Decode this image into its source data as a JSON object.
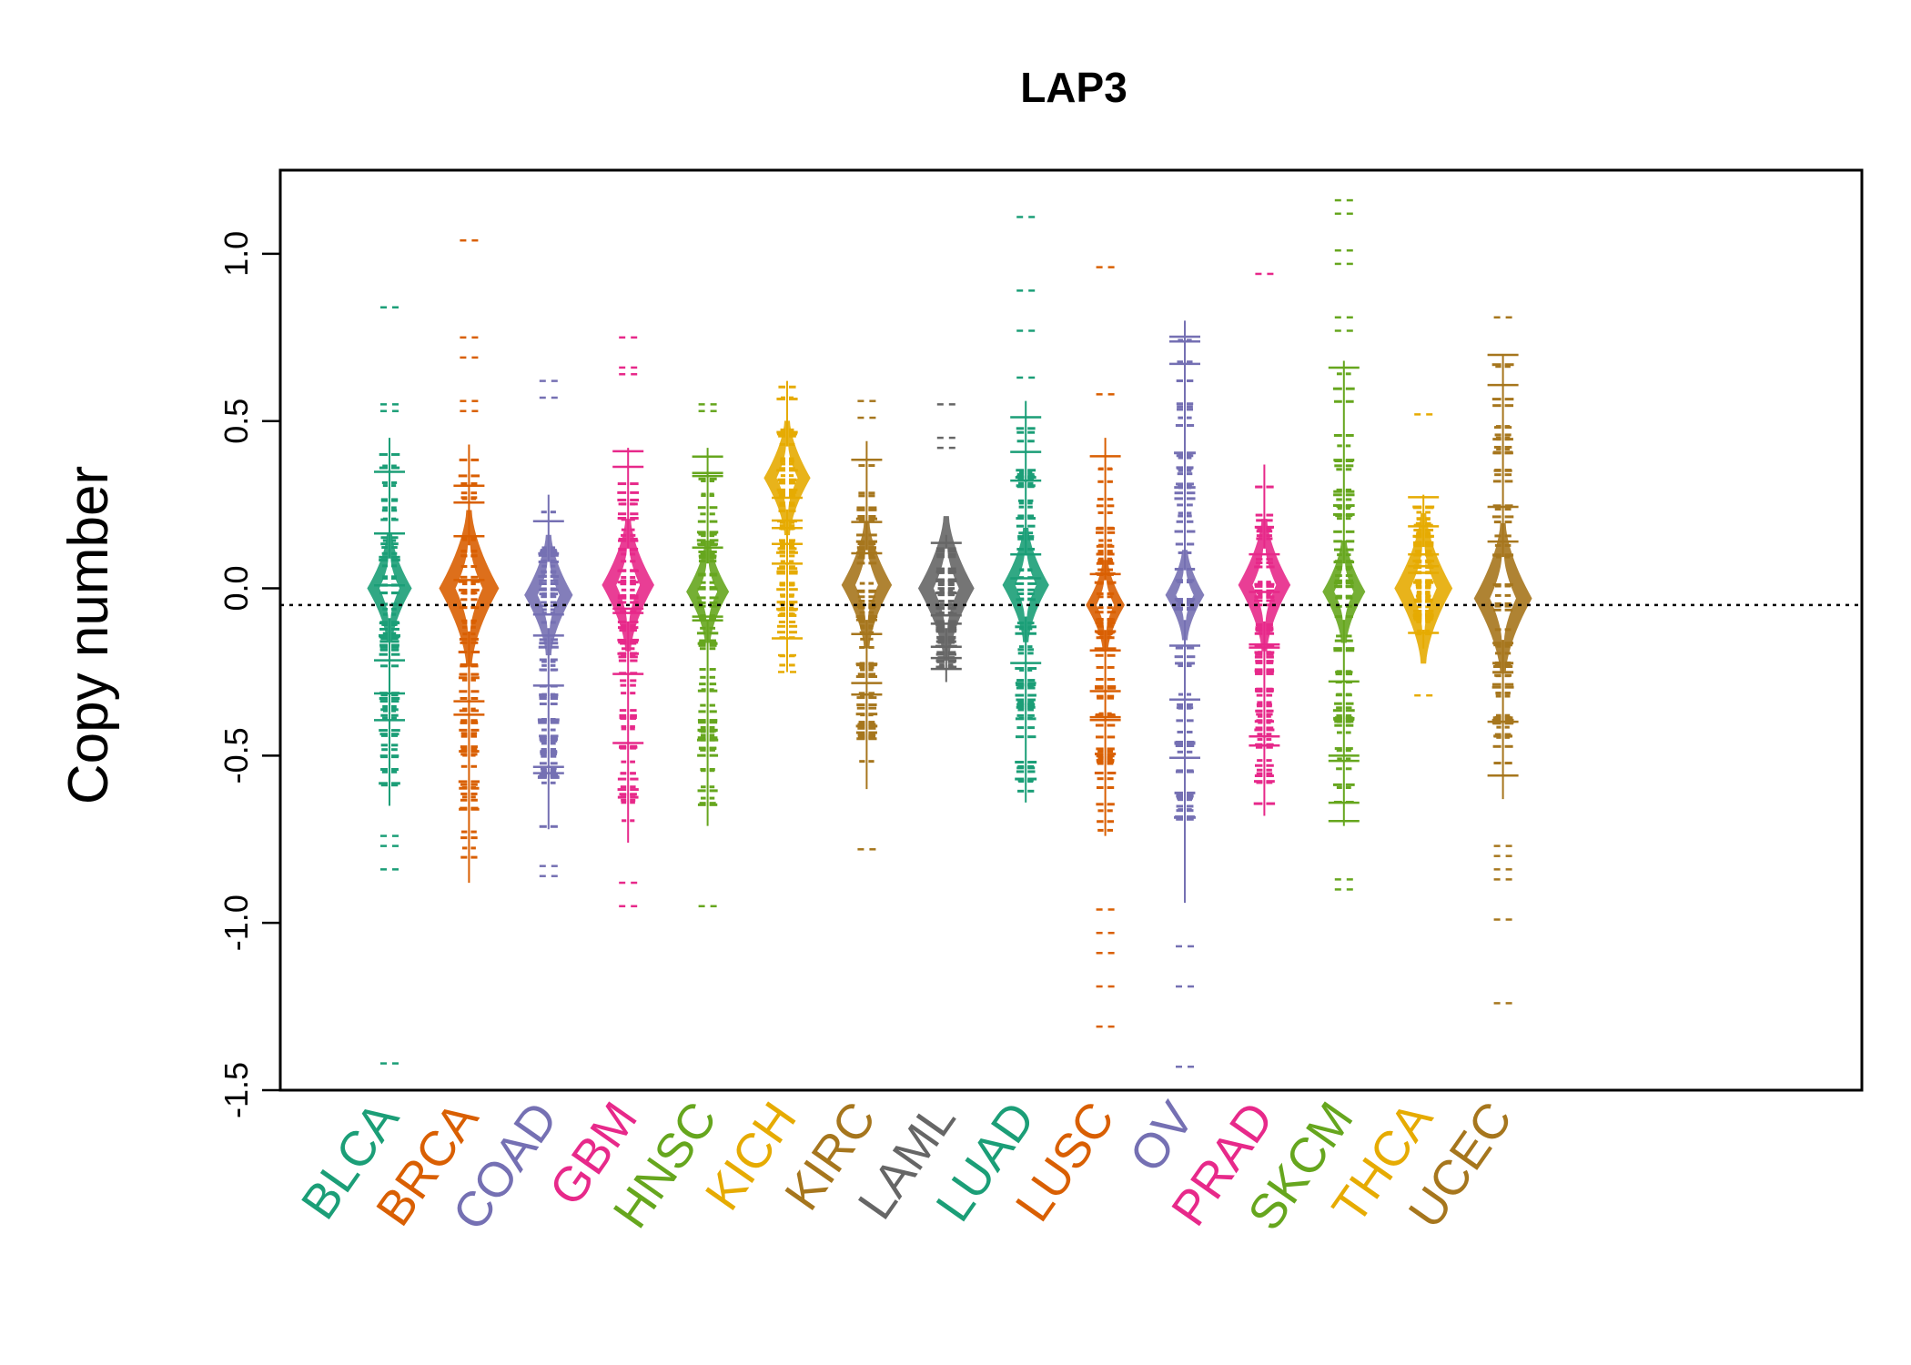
{
  "chart_data": {
    "type": "beanplot",
    "title": "LAP3",
    "xlabel": "",
    "ylabel": "Copy number",
    "ylim": [
      -1.5,
      1.25
    ],
    "yticks": [
      {
        "value": -1.5,
        "label": "-1.5"
      },
      {
        "value": -1.0,
        "label": "-1.0"
      },
      {
        "value": -0.5,
        "label": "-0.5"
      },
      {
        "value": 0.0,
        "label": "0.0"
      },
      {
        "value": 0.5,
        "label": "0.5"
      },
      {
        "value": 1.0,
        "label": "1.0"
      }
    ],
    "reference_line": -0.05,
    "categories": [
      {
        "name": "BLCA",
        "color": "#1B9E77",
        "min": -1.42,
        "max": 0.84,
        "q_low": -0.65,
        "q_high": 0.45,
        "center": 0.0,
        "width": 0.6,
        "outliers": [
          0.84,
          0.55,
          0.53,
          -0.74,
          -0.77,
          -0.84,
          -1.42
        ]
      },
      {
        "name": "BRCA",
        "color": "#D95F02",
        "min": -0.88,
        "max": 1.04,
        "q_low": -0.88,
        "q_high": 0.43,
        "center": 0.0,
        "width": 1.0,
        "outliers": [
          1.04,
          0.75,
          0.69,
          0.56,
          0.53
        ]
      },
      {
        "name": "COAD",
        "color": "#7570B3",
        "min": -0.86,
        "max": 0.62,
        "q_low": -0.72,
        "q_high": 0.28,
        "center": -0.02,
        "width": 0.7,
        "outliers": [
          0.62,
          0.57,
          -0.83,
          -0.86
        ]
      },
      {
        "name": "GBM",
        "color": "#E7298A",
        "min": -0.95,
        "max": 0.75,
        "q_low": -0.76,
        "q_high": 0.42,
        "center": 0.01,
        "width": 0.8,
        "outliers": [
          0.75,
          0.66,
          0.64,
          -0.88,
          -0.95
        ]
      },
      {
        "name": "HNSC",
        "color": "#66A61E",
        "min": -0.95,
        "max": 0.55,
        "q_low": -0.71,
        "q_high": 0.42,
        "center": -0.01,
        "width": 0.55,
        "outliers": [
          0.55,
          0.53,
          -0.95
        ]
      },
      {
        "name": "KICH",
        "color": "#E6AB02",
        "min": -0.29,
        "max": 0.62,
        "q_low": -0.25,
        "q_high": 0.62,
        "center": 0.33,
        "width": 0.65,
        "outliers": [
          -0.2,
          -0.25
        ]
      },
      {
        "name": "KIRC",
        "color": "#A6761D",
        "min": -0.78,
        "max": 0.56,
        "q_low": -0.6,
        "q_high": 0.44,
        "center": 0.01,
        "width": 0.75,
        "outliers": [
          0.56,
          0.51,
          -0.78
        ]
      },
      {
        "name": "LAML",
        "color": "#666666",
        "min": -0.28,
        "max": 0.55,
        "q_low": -0.28,
        "q_high": 0.16,
        "center": 0.0,
        "width": 0.9,
        "outliers": [
          0.55,
          0.45,
          0.42
        ]
      },
      {
        "name": "LUAD",
        "color": "#1B9E77",
        "min": -0.72,
        "max": 1.11,
        "q_low": -0.64,
        "q_high": 0.56,
        "center": 0.01,
        "width": 0.65,
        "outliers": [
          1.11,
          0.89,
          0.77,
          0.63
        ]
      },
      {
        "name": "LUSC",
        "color": "#D95F02",
        "min": -1.31,
        "max": 0.96,
        "q_low": -0.74,
        "q_high": 0.45,
        "center": -0.05,
        "width": 0.45,
        "outliers": [
          0.96,
          0.58,
          -0.96,
          -1.03,
          -1.09,
          -1.19,
          -1.31
        ]
      },
      {
        "name": "OV",
        "color": "#7570B3",
        "min": -1.43,
        "max": 0.89,
        "q_low": -0.94,
        "q_high": 0.8,
        "center": -0.02,
        "width": 0.45,
        "outliers": [
          -1.07,
          -1.19,
          -1.43
        ]
      },
      {
        "name": "PRAD",
        "color": "#E7298A",
        "min": -0.68,
        "max": 0.94,
        "q_low": -0.68,
        "q_high": 0.37,
        "center": 0.01,
        "width": 0.8,
        "outliers": [
          0.94
        ]
      },
      {
        "name": "SKCM",
        "color": "#66A61E",
        "min": -0.9,
        "max": 1.16,
        "q_low": -0.71,
        "q_high": 0.68,
        "center": -0.01,
        "width": 0.55,
        "outliers": [
          1.16,
          1.12,
          1.01,
          0.97,
          0.81,
          0.77,
          -0.87,
          -0.9
        ]
      },
      {
        "name": "THCA",
        "color": "#E6AB02",
        "min": -0.32,
        "max": 0.52,
        "q_low": -0.18,
        "q_high": 0.28,
        "center": 0.0,
        "width": 0.95,
        "outliers": [
          0.52,
          -0.32
        ]
      },
      {
        "name": "UCEC",
        "color": "#A6761D",
        "min": -1.24,
        "max": 0.81,
        "q_low": -0.63,
        "q_high": 0.7,
        "center": -0.03,
        "width": 0.95,
        "outliers": [
          0.81,
          -0.77,
          -0.8,
          -0.84,
          -0.87,
          -0.99,
          -1.24
        ]
      }
    ]
  }
}
